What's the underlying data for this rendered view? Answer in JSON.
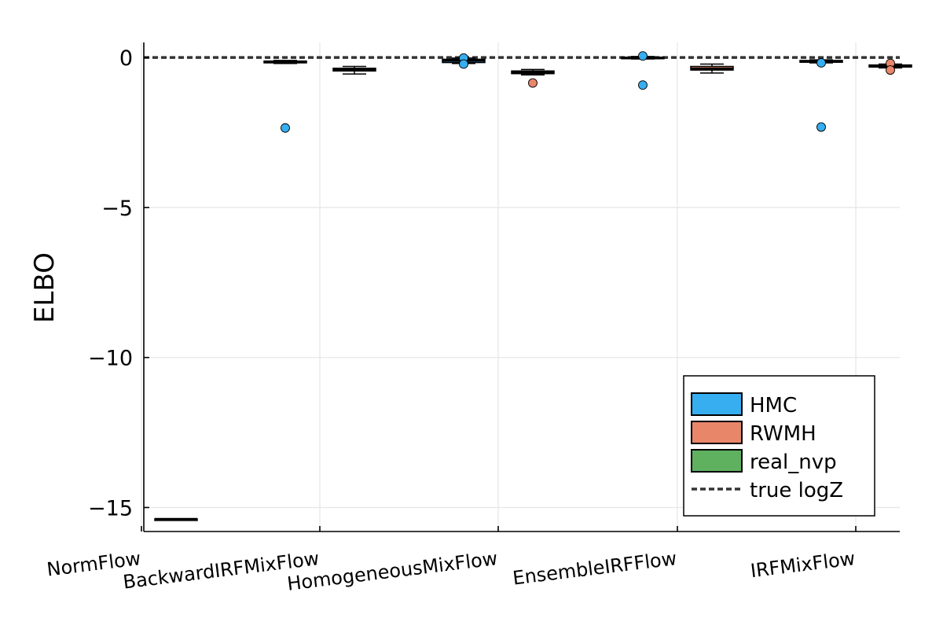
{
  "chart_data": {
    "type": "box",
    "title": "",
    "xlabel": "",
    "ylabel": "ELBO",
    "ylim": [
      -15.8,
      0.5
    ],
    "yticks": [
      0,
      -5,
      -10,
      -15
    ],
    "ytick_labels": [
      "0",
      "−5",
      "−10",
      "−15"
    ],
    "grid": true,
    "legend_position": "bottom-right",
    "categories": [
      "NormFlow",
      "BackwardIRFMixFlow",
      "HomogeneousMixFlow",
      "EnsembleIRFFlow",
      "IRFMixFlow"
    ],
    "true_logZ": 0,
    "series": [
      {
        "name": "HMC",
        "color": "#36aef0",
        "boxes": [
          null,
          {
            "q1": -0.18,
            "median": -0.15,
            "q3": -0.12,
            "whisker_low": -0.2,
            "whisker_high": -0.1,
            "outliers": [
              -2.35
            ]
          },
          {
            "q1": -0.17,
            "median": -0.11,
            "q3": -0.06,
            "whisker_low": -0.2,
            "whisker_high": -0.02,
            "outliers": [
              -0.02,
              -0.22
            ]
          },
          {
            "q1": -0.03,
            "median": -0.01,
            "q3": 0.01,
            "whisker_low": -0.05,
            "whisker_high": 0.03,
            "outliers": [
              0.05,
              -0.92
            ]
          },
          {
            "q1": -0.16,
            "median": -0.13,
            "q3": -0.1,
            "whisker_low": -0.18,
            "whisker_high": -0.08,
            "outliers": [
              -0.18,
              -2.32
            ]
          }
        ]
      },
      {
        "name": "RWMH",
        "color": "#e8866a",
        "boxes": [
          null,
          {
            "q1": -0.45,
            "median": -0.4,
            "q3": -0.36,
            "whisker_low": -0.55,
            "whisker_high": -0.3,
            "outliers": []
          },
          {
            "q1": -0.54,
            "median": -0.5,
            "q3": -0.45,
            "whisker_low": -0.58,
            "whisker_high": -0.4,
            "outliers": [
              -0.85
            ]
          },
          {
            "q1": -0.42,
            "median": -0.37,
            "q3": -0.3,
            "whisker_low": -0.52,
            "whisker_high": -0.22,
            "outliers": []
          },
          {
            "q1": -0.32,
            "median": -0.28,
            "q3": -0.25,
            "whisker_low": -0.35,
            "whisker_high": -0.22,
            "outliers": [
              -0.2,
              -0.42
            ]
          }
        ]
      },
      {
        "name": "real_nvp",
        "color": "#5fb160",
        "boxes": [
          {
            "q1": -15.38,
            "median": -15.38,
            "q3": -15.38,
            "whisker_low": -15.38,
            "whisker_high": -15.38,
            "outliers": []
          },
          null,
          null,
          null,
          null
        ]
      }
    ],
    "legend": [
      {
        "label": "HMC",
        "kind": "patch",
        "color": "#36aef0"
      },
      {
        "label": "RWMH",
        "kind": "patch",
        "color": "#e8866a"
      },
      {
        "label": "real_nvp",
        "kind": "patch",
        "color": "#5fb160"
      },
      {
        "label": "true logZ",
        "kind": "dashed-line",
        "color": "#333333"
      }
    ]
  }
}
